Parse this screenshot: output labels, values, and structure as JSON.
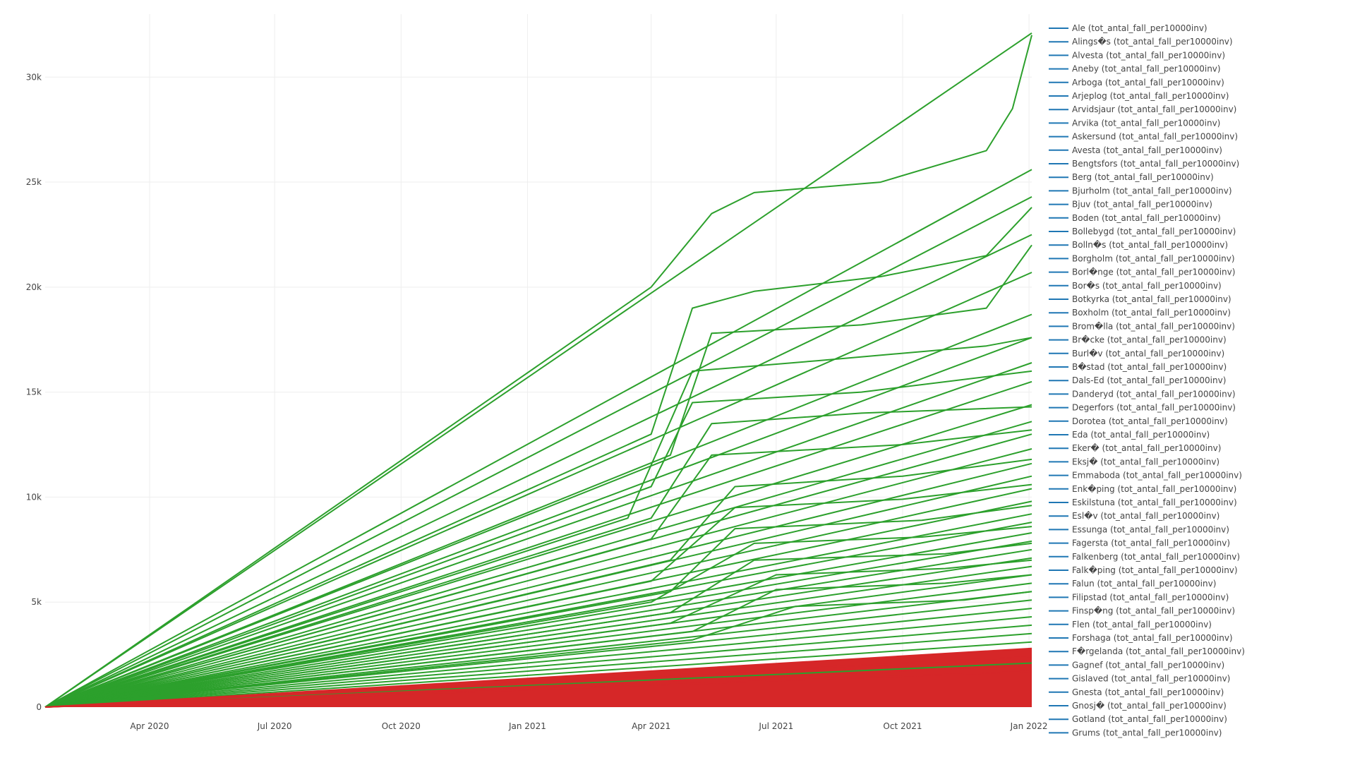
{
  "chart_data": {
    "type": "line",
    "title": "",
    "xlabel": "",
    "ylabel": "",
    "x_range": [
      "2020-01-16",
      "2022-01-03"
    ],
    "ylim": [
      0,
      33000
    ],
    "x_ticks": [
      {
        "date": "2020-04-01",
        "label": "Apr 2020"
      },
      {
        "date": "2020-07-01",
        "label": "Jul 2020"
      },
      {
        "date": "2020-10-01",
        "label": "Oct 2020"
      },
      {
        "date": "2021-01-01",
        "label": "Jan 2021"
      },
      {
        "date": "2021-04-01",
        "label": "Apr 2021"
      },
      {
        "date": "2021-07-01",
        "label": "Jul 2021"
      },
      {
        "date": "2021-10-01",
        "label": "Oct 2021"
      },
      {
        "date": "2022-01-01",
        "label": "Jan 2022"
      }
    ],
    "y_ticks": [
      {
        "value": 0,
        "label": "0"
      },
      {
        "value": 5000,
        "label": "5k"
      },
      {
        "value": 10000,
        "label": "10k"
      },
      {
        "value": 15000,
        "label": "15k"
      },
      {
        "value": 20000,
        "label": "20k"
      },
      {
        "value": 25000,
        "label": "25k"
      },
      {
        "value": 30000,
        "label": "30k"
      }
    ],
    "grid": true,
    "legend_placement": "right",
    "colors": {
      "green": "#2ca02c",
      "red": "#d62728",
      "legend_line": "#1f77b4",
      "grid": "#eeeeee"
    },
    "series": [
      {
        "name": "Ale (tot_antal_fall_per10000inv)",
        "color": "#2ca02c",
        "x": [
          "2020-01-16",
          "2021-04-01",
          "2021-05-15",
          "2021-06-15",
          "2021-09-15",
          "2021-12-01",
          "2021-12-20",
          "2022-01-03"
        ],
        "y": [
          0,
          20000,
          23500,
          24500,
          25000,
          26500,
          28500,
          32000
        ]
      },
      {
        "name": "Alings�s (tot_antal_fall_per10000inv)",
        "color": "#2ca02c",
        "x": [
          "2020-01-16",
          "2022-01-03"
        ],
        "y": [
          0,
          32100
        ]
      },
      {
        "name": "Alvesta (tot_antal_fall_per10000inv)",
        "color": "#2ca02c",
        "x": [
          "2020-01-16",
          "2022-01-03"
        ],
        "y": [
          0,
          25600
        ]
      },
      {
        "name": "Aneby (tot_antal_fall_per10000inv)",
        "color": "#2ca02c",
        "x": [
          "2020-01-16",
          "2021-04-01",
          "2021-05-01",
          "2021-06-15",
          "2021-09-15",
          "2021-12-01",
          "2022-01-03"
        ],
        "y": [
          0,
          13000,
          19000,
          19800,
          20500,
          21500,
          23800
        ]
      },
      {
        "name": "Arboga (tot_antal_fall_per10000inv)",
        "color": "#2ca02c",
        "x": [
          "2020-01-16",
          "2022-01-03"
        ],
        "y": [
          0,
          24300
        ]
      },
      {
        "name": "Arjeplog (tot_antal_fall_per10000inv)",
        "color": "#2ca02c",
        "x": [
          "2020-01-16",
          "2022-01-03"
        ],
        "y": [
          0,
          22500
        ]
      },
      {
        "name": "Arvidsjaur (tot_antal_fall_per10000inv)",
        "color": "#2ca02c",
        "x": [
          "2020-01-16",
          "2021-04-15",
          "2021-05-15",
          "2021-09-01",
          "2021-12-01",
          "2022-01-03"
        ],
        "y": [
          0,
          12000,
          17800,
          18200,
          19000,
          22000
        ]
      },
      {
        "name": "Arvika (tot_antal_fall_per10000inv)",
        "color": "#2ca02c",
        "x": [
          "2020-01-16",
          "2022-01-03"
        ],
        "y": [
          0,
          20700
        ]
      },
      {
        "name": "Askersund (tot_antal_fall_per10000inv)",
        "color": "#2ca02c",
        "x": [
          "2020-01-16",
          "2022-01-03"
        ],
        "y": [
          0,
          18700
        ]
      },
      {
        "name": "Avesta (tot_antal_fall_per10000inv)",
        "color": "#2ca02c",
        "x": [
          "2020-01-16",
          "2021-03-15",
          "2021-05-01",
          "2021-08-01",
          "2021-12-01",
          "2022-01-03"
        ],
        "y": [
          0,
          9000,
          16000,
          16500,
          17200,
          17600
        ]
      },
      {
        "name": "Bengtsfors (tot_antal_fall_per10000inv)",
        "color": "#2ca02c",
        "x": [
          "2020-01-16",
          "2022-01-03"
        ],
        "y": [
          0,
          17600
        ]
      },
      {
        "name": "Berg (tot_antal_fall_per10000inv)",
        "color": "#2ca02c",
        "x": [
          "2020-01-16",
          "2022-01-03"
        ],
        "y": [
          0,
          16400
        ]
      },
      {
        "name": "Bjurholm (tot_antal_fall_per10000inv)",
        "color": "#2ca02c",
        "x": [
          "2020-01-16",
          "2021-04-01",
          "2021-05-01",
          "2021-09-01",
          "2022-01-03"
        ],
        "y": [
          0,
          10500,
          14500,
          15000,
          16000
        ]
      },
      {
        "name": "Bjuv (tot_antal_fall_per10000inv)",
        "color": "#2ca02c",
        "x": [
          "2020-01-16",
          "2022-01-03"
        ],
        "y": [
          0,
          15500
        ]
      },
      {
        "name": "Boden (tot_antal_fall_per10000inv)",
        "color": "#2ca02c",
        "x": [
          "2020-01-16",
          "2022-01-03"
        ],
        "y": [
          0,
          14400
        ]
      },
      {
        "name": "Bollebygd (tot_antal_fall_per10000inv)",
        "color": "#2ca02c",
        "x": [
          "2020-01-16",
          "2021-04-01",
          "2021-05-15",
          "2021-09-01",
          "2022-01-03"
        ],
        "y": [
          0,
          9000,
          13500,
          14000,
          14300
        ]
      },
      {
        "name": "Bolln�s (tot_antal_fall_per10000inv)",
        "color": "#2ca02c",
        "x": [
          "2020-01-16",
          "2022-01-03"
        ],
        "y": [
          0,
          13600
        ]
      },
      {
        "name": "Borgholm (tot_antal_fall_per10000inv)",
        "color": "#2ca02c",
        "x": [
          "2020-01-16",
          "2022-01-03"
        ],
        "y": [
          0,
          13000
        ]
      },
      {
        "name": "Borl�nge (tot_antal_fall_per10000inv)",
        "color": "#2ca02c",
        "x": [
          "2020-01-16",
          "2021-04-01",
          "2021-05-15",
          "2021-10-01",
          "2022-01-03"
        ],
        "y": [
          0,
          8000,
          12000,
          12500,
          13200
        ]
      },
      {
        "name": "Bor�s (tot_antal_fall_per10000inv)",
        "color": "#2ca02c",
        "x": [
          "2020-01-16",
          "2022-01-03"
        ],
        "y": [
          0,
          12300
        ]
      },
      {
        "name": "Botkyrka (tot_antal_fall_per10000inv)",
        "color": "#2ca02c",
        "x": [
          "2020-01-16",
          "2022-01-03"
        ],
        "y": [
          0,
          11600
        ]
      },
      {
        "name": "Boxholm (tot_antal_fall_per10000inv)",
        "color": "#2ca02c",
        "x": [
          "2020-01-16",
          "2021-04-15",
          "2021-06-01",
          "2021-10-01",
          "2022-01-03"
        ],
        "y": [
          0,
          7000,
          10500,
          11000,
          11800
        ]
      },
      {
        "name": "Brom�lla (tot_antal_fall_per10000inv)",
        "color": "#2ca02c",
        "x": [
          "2020-01-16",
          "2022-01-03"
        ],
        "y": [
          0,
          11000
        ]
      },
      {
        "name": "Br�cke (tot_antal_fall_per10000inv)",
        "color": "#2ca02c",
        "x": [
          "2020-01-16",
          "2022-01-03"
        ],
        "y": [
          0,
          10400
        ]
      },
      {
        "name": "Burl�v (tot_antal_fall_per10000inv)",
        "color": "#2ca02c",
        "x": [
          "2020-01-16",
          "2021-04-01",
          "2021-06-01",
          "2021-10-01",
          "2022-01-03"
        ],
        "y": [
          0,
          6000,
          9500,
          9900,
          10600
        ]
      },
      {
        "name": "B�stad (tot_antal_fall_per10000inv)",
        "color": "#2ca02c",
        "x": [
          "2020-01-16",
          "2022-01-03"
        ],
        "y": [
          0,
          9800
        ]
      },
      {
        "name": "Dals-Ed (tot_antal_fall_per10000inv)",
        "color": "#2ca02c",
        "x": [
          "2020-01-16",
          "2022-01-03"
        ],
        "y": [
          0,
          9200
        ]
      },
      {
        "name": "Danderyd (tot_antal_fall_per10000inv)",
        "color": "#2ca02c",
        "x": [
          "2020-01-16",
          "2021-04-15",
          "2021-06-01",
          "2021-10-15",
          "2022-01-03"
        ],
        "y": [
          0,
          5500,
          8500,
          8900,
          9600
        ]
      },
      {
        "name": "Degerfors (tot_antal_fall_per10000inv)",
        "color": "#2ca02c",
        "x": [
          "2020-01-16",
          "2022-01-03"
        ],
        "y": [
          0,
          8800
        ]
      },
      {
        "name": "Dorotea (tot_antal_fall_per10000inv)",
        "color": "#2ca02c",
        "x": [
          "2020-01-16",
          "2022-01-03"
        ],
        "y": [
          0,
          8300
        ]
      },
      {
        "name": "Eda (tot_antal_fall_per10000inv)",
        "color": "#2ca02c",
        "x": [
          "2020-01-16",
          "2021-04-01",
          "2021-06-15",
          "2021-10-15",
          "2022-01-03"
        ],
        "y": [
          0,
          5000,
          7800,
          8100,
          8600
        ]
      },
      {
        "name": "Eker� (tot_antal_fall_per10000inv)",
        "color": "#2ca02c",
        "x": [
          "2020-01-16",
          "2022-01-03"
        ],
        "y": [
          0,
          7900
        ]
      },
      {
        "name": "Eksj� (tot_antal_fall_per10000inv)",
        "color": "#2ca02c",
        "x": [
          "2020-01-16",
          "2022-01-03"
        ],
        "y": [
          0,
          7500
        ]
      },
      {
        "name": "Emmaboda (tot_antal_fall_per10000inv)",
        "color": "#2ca02c",
        "x": [
          "2020-01-16",
          "2021-04-15",
          "2021-06-15",
          "2021-11-01",
          "2022-01-03"
        ],
        "y": [
          0,
          4500,
          7000,
          7300,
          7800
        ]
      },
      {
        "name": "Enk�ping (tot_antal_fall_per10000inv)",
        "color": "#2ca02c",
        "x": [
          "2020-01-16",
          "2022-01-03"
        ],
        "y": [
          0,
          7100
        ]
      },
      {
        "name": "Eskilstuna (tot_antal_fall_per10000inv)",
        "color": "#2ca02c",
        "x": [
          "2020-01-16",
          "2022-01-03"
        ],
        "y": [
          0,
          6700
        ]
      },
      {
        "name": "Esl�v (tot_antal_fall_per10000inv)",
        "color": "#2ca02c",
        "x": [
          "2020-01-16",
          "2021-04-15",
          "2021-07-01",
          "2021-11-01",
          "2022-01-03"
        ],
        "y": [
          0,
          4000,
          6300,
          6600,
          7000
        ]
      },
      {
        "name": "Essunga (tot_antal_fall_per10000inv)",
        "color": "#2ca02c",
        "x": [
          "2020-01-16",
          "2022-01-03"
        ],
        "y": [
          0,
          6300
        ]
      },
      {
        "name": "Fagersta (tot_antal_fall_per10000inv)",
        "color": "#2ca02c",
        "x": [
          "2020-01-16",
          "2022-01-03"
        ],
        "y": [
          0,
          5900
        ]
      },
      {
        "name": "Falkenberg (tot_antal_fall_per10000inv)",
        "color": "#2ca02c",
        "x": [
          "2020-01-16",
          "2021-05-01",
          "2021-07-01",
          "2021-11-01",
          "2022-01-03"
        ],
        "y": [
          0,
          3600,
          5600,
          5900,
          6300
        ]
      },
      {
        "name": "Falk�ping (tot_antal_fall_per10000inv)",
        "color": "#2ca02c",
        "x": [
          "2020-01-16",
          "2022-01-03"
        ],
        "y": [
          0,
          5500
        ]
      },
      {
        "name": "Falun (tot_antal_fall_per10000inv)",
        "color": "#2ca02c",
        "x": [
          "2020-01-16",
          "2022-01-03"
        ],
        "y": [
          0,
          5100
        ]
      },
      {
        "name": "Filipstad (tot_antal_fall_per10000inv)",
        "color": "#2ca02c",
        "x": [
          "2020-01-16",
          "2021-05-01",
          "2021-07-15",
          "2021-11-15",
          "2022-01-03"
        ],
        "y": [
          0,
          3200,
          4800,
          5100,
          5500
        ]
      },
      {
        "name": "Finsp�ng (tot_antal_fall_per10000inv)",
        "color": "#2ca02c",
        "x": [
          "2020-01-16",
          "2022-01-03"
        ],
        "y": [
          0,
          4700
        ]
      },
      {
        "name": "Flen (tot_antal_fall_per10000inv)",
        "color": "#2ca02c",
        "x": [
          "2020-01-16",
          "2022-01-03"
        ],
        "y": [
          0,
          4300
        ]
      },
      {
        "name": "Forshaga (tot_antal_fall_per10000inv)",
        "color": "#2ca02c",
        "x": [
          "2020-01-16",
          "2022-01-03"
        ],
        "y": [
          0,
          3900
        ]
      },
      {
        "name": "F�rgelanda (tot_antal_fall_per10000inv)",
        "color": "#2ca02c",
        "x": [
          "2020-01-16",
          "2022-01-03"
        ],
        "y": [
          0,
          3500
        ]
      },
      {
        "name": "Gagnef (tot_antal_fall_per10000inv)",
        "color": "#2ca02c",
        "x": [
          "2020-01-16",
          "2022-01-03"
        ],
        "y": [
          0,
          3100
        ]
      },
      {
        "name": "Gislaved (tot_antal_fall_per10000inv)",
        "color": "#2ca02c",
        "x": [
          "2020-01-16",
          "2022-01-03"
        ],
        "y": [
          0,
          2100
        ]
      },
      {
        "name": "Gnesta (tot_antal_fall_per10000inv)",
        "color": "#d62728",
        "x": [
          "2020-01-16",
          "2022-01-03"
        ],
        "y": [
          0,
          2800
        ]
      },
      {
        "name": "Gnosj� (tot_antal_fall_per10000inv)",
        "color": "#d62728",
        "x": [
          "2020-01-16",
          "2022-01-03"
        ],
        "y": [
          0,
          2400
        ]
      },
      {
        "name": "Gotland (tot_antal_fall_per10000inv)",
        "color": "#d62728",
        "x": [
          "2020-01-16",
          "2022-01-03"
        ],
        "y": [
          0,
          2000
        ]
      },
      {
        "name": "Grums (tot_antal_fall_per10000inv)",
        "color": "#d62728",
        "x": [
          "2020-01-16",
          "2022-01-03"
        ],
        "y": [
          0,
          1700
        ]
      }
    ]
  }
}
